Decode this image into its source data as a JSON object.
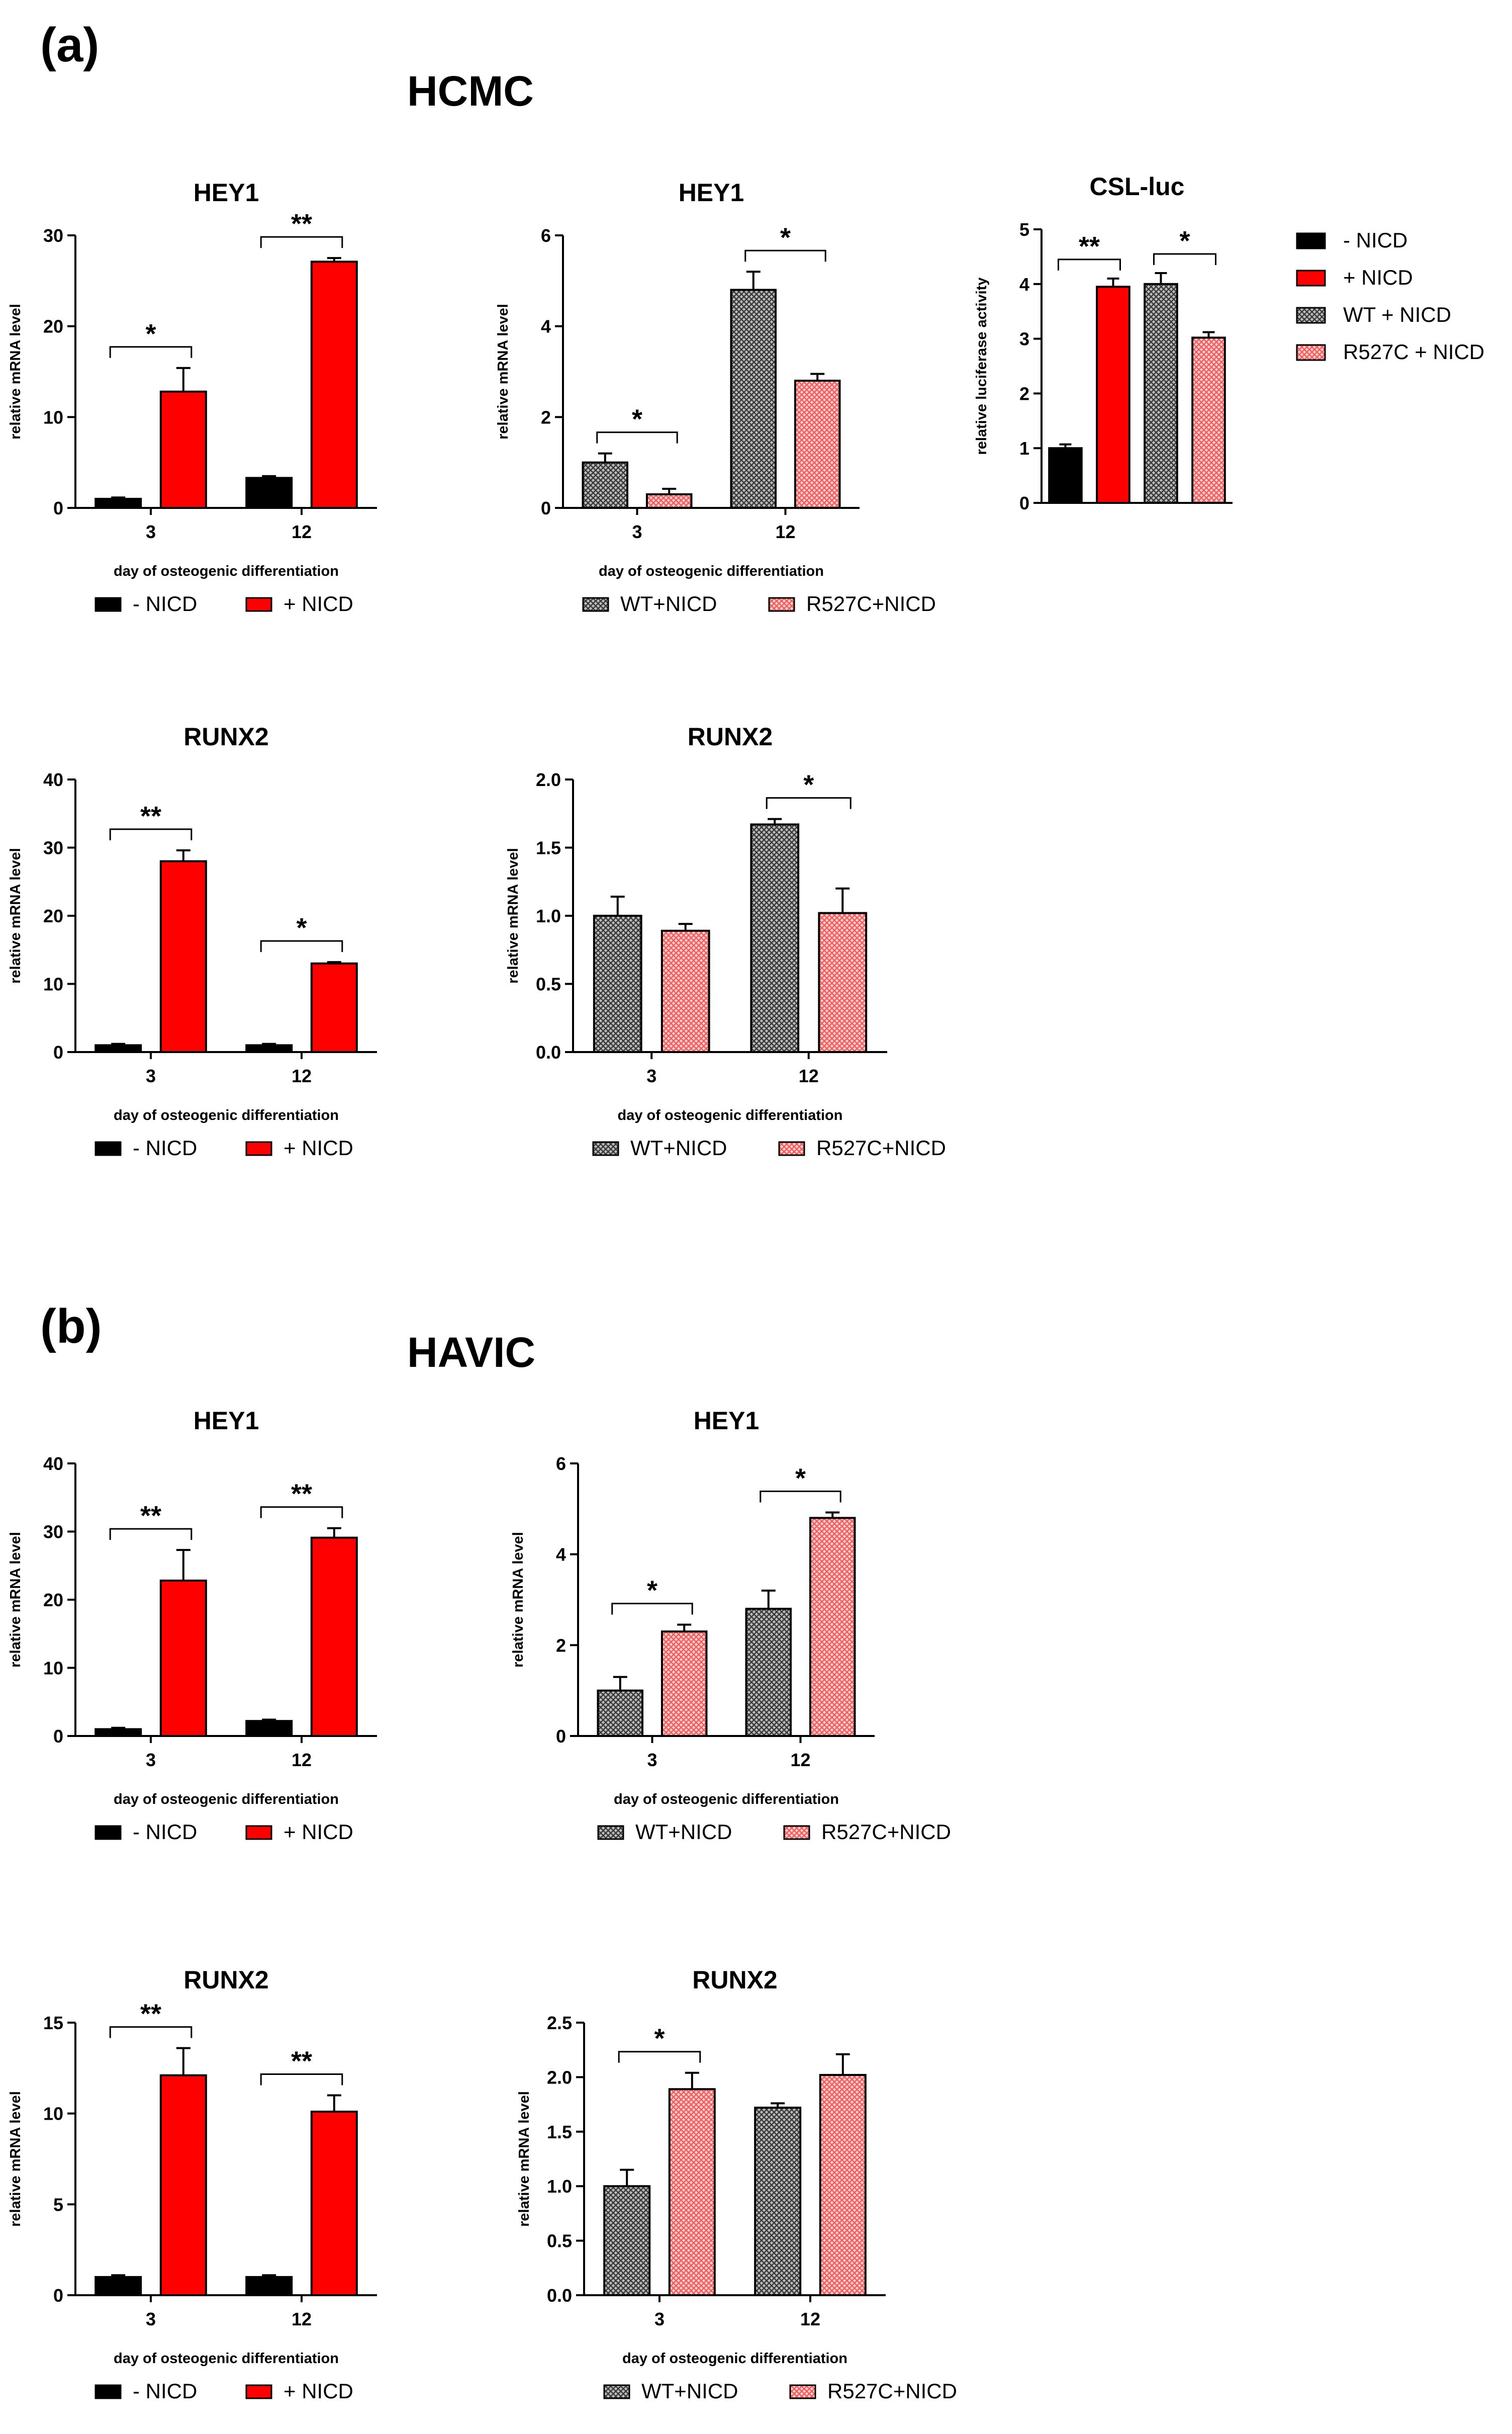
{
  "sections": [
    {
      "label": "(a)",
      "title": "HCMC"
    },
    {
      "label": "(b)",
      "title": "HAVIC"
    }
  ],
  "colors": {
    "neg": "#000000",
    "pos": "#ff0000",
    "wt": "#5a5a5a",
    "mut": "#ff9a9a"
  },
  "legend_a": [
    {
      "key": "neg",
      "label": "- NICD"
    },
    {
      "key": "pos",
      "label": "+ NICD"
    },
    {
      "key": "wt",
      "label": "WT + NICD"
    },
    {
      "key": "mut",
      "label": "R527C + NICD"
    }
  ],
  "chart_data": [
    {
      "id": "a-hey1-nicd",
      "section": "HCMC",
      "type": "bar",
      "title": "HEY1",
      "xlabel": "day of osteogenic differentiation",
      "ylabel": "relative mRNA level",
      "categories": [
        "3",
        "12"
      ],
      "ylim": [
        0,
        30
      ],
      "yticks": [
        0,
        10,
        20,
        30
      ],
      "series": [
        {
          "name": "- NICD",
          "key": "neg",
          "values": [
            1,
            3.3
          ],
          "errors": [
            0.15,
            0.2
          ]
        },
        {
          "name": "+ NICD",
          "key": "pos",
          "values": [
            12.8,
            27.1
          ],
          "errors": [
            2.6,
            0.4
          ]
        }
      ],
      "significance": [
        {
          "category": "3",
          "label": "*"
        },
        {
          "category": "12",
          "label": "**"
        }
      ],
      "legend": [
        "- NICD",
        "+ NICD"
      ]
    },
    {
      "id": "a-hey1-mut",
      "section": "HCMC",
      "type": "bar",
      "title": "HEY1",
      "xlabel": "day of osteogenic differentiation",
      "ylabel": "relative mRNA level",
      "categories": [
        "3",
        "12"
      ],
      "ylim": [
        0,
        6
      ],
      "yticks": [
        0,
        2,
        4,
        6
      ],
      "series": [
        {
          "name": "WT+NICD",
          "key": "wt",
          "values": [
            1.0,
            4.8
          ],
          "errors": [
            0.2,
            0.4
          ]
        },
        {
          "name": "R527C+NICD",
          "key": "mut",
          "values": [
            0.3,
            2.8
          ],
          "errors": [
            0.12,
            0.15
          ]
        }
      ],
      "significance": [
        {
          "category": "3",
          "label": "*"
        },
        {
          "category": "12",
          "label": "*"
        }
      ],
      "legend": [
        "WT+NICD",
        "R527C+NICD"
      ]
    },
    {
      "id": "a-csl-luc",
      "section": "HCMC",
      "type": "bar",
      "title": "CSL-luc",
      "xlabel": "",
      "ylabel": "relative luciferase activity",
      "categories": [
        "- NICD",
        "+ NICD",
        "WT + NICD",
        "R527C + NICD"
      ],
      "ylim": [
        0,
        5
      ],
      "yticks": [
        0,
        1,
        2,
        3,
        4,
        5
      ],
      "values": [
        1.0,
        3.95,
        4.0,
        3.02
      ],
      "errors": [
        0.07,
        0.15,
        0.2,
        0.1
      ],
      "keys": [
        "neg",
        "pos",
        "wt",
        "mut"
      ],
      "significance": [
        {
          "from": 0,
          "to": 1,
          "label": "**"
        },
        {
          "from": 2,
          "to": 3,
          "label": "*"
        }
      ]
    },
    {
      "id": "a-runx2-nicd",
      "section": "HCMC",
      "type": "bar",
      "title": "RUNX2",
      "xlabel": "day of osteogenic differentiation",
      "ylabel": "relative mRNA level",
      "categories": [
        "3",
        "12"
      ],
      "ylim": [
        0,
        40
      ],
      "yticks": [
        0,
        10,
        20,
        30,
        40
      ],
      "series": [
        {
          "name": "- NICD",
          "key": "neg",
          "values": [
            1,
            1
          ],
          "errors": [
            0.2,
            0.2
          ]
        },
        {
          "name": "+ NICD",
          "key": "pos",
          "values": [
            28,
            13
          ],
          "errors": [
            1.6,
            0.2
          ]
        }
      ],
      "significance": [
        {
          "category": "3",
          "label": "**"
        },
        {
          "category": "12",
          "label": "*"
        }
      ],
      "legend": [
        "- NICD",
        "+ NICD"
      ]
    },
    {
      "id": "a-runx2-mut",
      "section": "HCMC",
      "type": "bar",
      "title": "RUNX2",
      "xlabel": "day of osteogenic differentiation",
      "ylabel": "relative mRNA level",
      "categories": [
        "3",
        "12"
      ],
      "ylim": [
        0,
        2
      ],
      "yticks": [
        "0.0",
        "0.5",
        "1.0",
        "1.5",
        "2.0"
      ],
      "series": [
        {
          "name": "WT+NICD",
          "key": "wt",
          "values": [
            1.0,
            1.67
          ],
          "errors": [
            0.14,
            0.04
          ]
        },
        {
          "name": "R527C+NICD",
          "key": "mut",
          "values": [
            0.89,
            1.02
          ],
          "errors": [
            0.05,
            0.18
          ]
        }
      ],
      "significance": [
        {
          "category": "12",
          "label": "*"
        }
      ],
      "legend": [
        "WT+NICD",
        "R527C+NICD"
      ]
    },
    {
      "id": "b-hey1-nicd",
      "section": "HAVIC",
      "type": "bar",
      "title": "HEY1",
      "xlabel": "day of osteogenic differentiation",
      "ylabel": "relative mRNA level",
      "categories": [
        "3",
        "12"
      ],
      "ylim": [
        0,
        40
      ],
      "yticks": [
        0,
        10,
        20,
        30,
        40
      ],
      "series": [
        {
          "name": "- NICD",
          "key": "neg",
          "values": [
            1,
            2.2
          ],
          "errors": [
            0.2,
            0.2
          ]
        },
        {
          "name": "+ NICD",
          "key": "pos",
          "values": [
            22.8,
            29.1
          ],
          "errors": [
            4.5,
            1.4
          ]
        }
      ],
      "significance": [
        {
          "category": "3",
          "label": "**"
        },
        {
          "category": "12",
          "label": "**"
        }
      ],
      "legend": [
        "- NICD",
        "+ NICD"
      ]
    },
    {
      "id": "b-hey1-mut",
      "section": "HAVIC",
      "type": "bar",
      "title": "HEY1",
      "xlabel": "day of osteogenic differentiation",
      "ylabel": "relative mRNA level",
      "categories": [
        "3",
        "12"
      ],
      "ylim": [
        0,
        6
      ],
      "yticks": [
        0,
        2,
        4,
        6
      ],
      "series": [
        {
          "name": "WT+NICD",
          "key": "wt",
          "values": [
            1.0,
            2.8
          ],
          "errors": [
            0.3,
            0.4
          ]
        },
        {
          "name": "R527C+NICD",
          "key": "mut",
          "values": [
            2.3,
            4.8
          ],
          "errors": [
            0.15,
            0.12
          ]
        }
      ],
      "significance": [
        {
          "category": "3",
          "label": "*"
        },
        {
          "category": "12",
          "label": "*"
        }
      ],
      "legend": [
        "WT+NICD",
        "R527C+NICD"
      ]
    },
    {
      "id": "b-runx2-nicd",
      "section": "HAVIC",
      "type": "bar",
      "title": "RUNX2",
      "xlabel": "day of osteogenic differentiation",
      "ylabel": "relative mRNA level",
      "categories": [
        "3",
        "12"
      ],
      "ylim": [
        0,
        15
      ],
      "yticks": [
        0,
        5,
        10,
        15
      ],
      "series": [
        {
          "name": "- NICD",
          "key": "neg",
          "values": [
            1,
            1
          ],
          "errors": [
            0.1,
            0.1
          ]
        },
        {
          "name": "+ NICD",
          "key": "pos",
          "values": [
            12.1,
            10.1
          ],
          "errors": [
            1.5,
            0.9
          ]
        }
      ],
      "significance": [
        {
          "category": "3",
          "label": "**"
        },
        {
          "category": "12",
          "label": "**"
        }
      ],
      "legend": [
        "- NICD",
        "+ NICD"
      ]
    },
    {
      "id": "b-runx2-mut",
      "section": "HAVIC",
      "type": "bar",
      "title": "RUNX2",
      "xlabel": "day of osteogenic differentiation",
      "ylabel": "relative mRNA level",
      "categories": [
        "3",
        "12"
      ],
      "ylim": [
        0,
        2.5
      ],
      "yticks": [
        "0.0",
        "0.5",
        "1.0",
        "1.5",
        "2.0",
        "2.5"
      ],
      "series": [
        {
          "name": "WT+NICD",
          "key": "wt",
          "values": [
            1.0,
            1.72
          ],
          "errors": [
            0.15,
            0.04
          ]
        },
        {
          "name": "R527C+NICD",
          "key": "mut",
          "values": [
            1.89,
            2.02
          ],
          "errors": [
            0.15,
            0.19
          ]
        }
      ],
      "significance": [
        {
          "category": "3",
          "label": "*"
        }
      ],
      "legend": [
        "WT+NICD",
        "R527C+NICD"
      ]
    }
  ]
}
